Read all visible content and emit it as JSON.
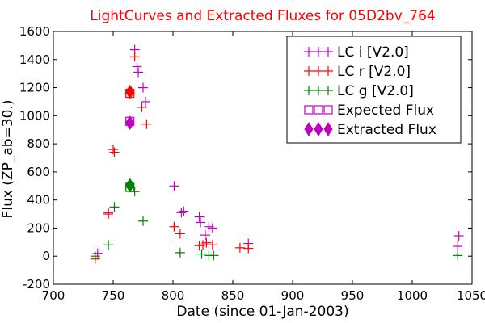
{
  "chart_data": {
    "type": "scatter",
    "title": "LightCurves and Extracted Fluxes for 05D2bv_764",
    "title_color": "#ff0000",
    "xlabel": "Date (since 01-Jan-2003)",
    "ylabel": "Flux (ZP_ab=30.)",
    "xlim": [
      700,
      1050
    ],
    "ylim": [
      -200,
      1600
    ],
    "x_ticks": [
      700,
      750,
      800,
      850,
      900,
      950,
      1000,
      1050
    ],
    "y_ticks": [
      -200,
      0,
      200,
      400,
      600,
      800,
      1000,
      1200,
      1400,
      1600
    ],
    "grid": false,
    "legend_position": "top-right",
    "series": [
      {
        "name": "LC i [V2.0]",
        "marker": "plus",
        "color": "#bf00bf",
        "points": [
          [
            737,
            20
          ],
          [
            746,
            310
          ],
          [
            768,
            1470
          ],
          [
            770,
            1350
          ],
          [
            771,
            1310
          ],
          [
            775,
            1200
          ],
          [
            777,
            1100
          ],
          [
            801,
            500
          ],
          [
            807,
            310
          ],
          [
            809,
            320
          ],
          [
            822,
            280
          ],
          [
            823,
            240
          ],
          [
            827,
            150
          ],
          [
            830,
            210
          ],
          [
            833,
            200
          ],
          [
            863,
            90
          ],
          [
            1038,
            70
          ],
          [
            1039,
            145
          ]
        ]
      },
      {
        "name": "LC r [V2.0]",
        "marker": "plus",
        "color": "#ff0000",
        "points": [
          [
            735,
            -20
          ],
          [
            746,
            300
          ],
          [
            750,
            760
          ],
          [
            751,
            740
          ],
          [
            764,
            1160
          ],
          [
            768,
            1420
          ],
          [
            774,
            1060
          ],
          [
            778,
            940
          ],
          [
            801,
            210
          ],
          [
            806,
            160
          ],
          [
            822,
            75
          ],
          [
            825,
            80
          ],
          [
            828,
            95
          ],
          [
            833,
            80
          ],
          [
            856,
            60
          ],
          [
            863,
            55
          ]
        ]
      },
      {
        "name": "LC g [V2.0]",
        "marker": "plus",
        "color": "#008000",
        "points": [
          [
            735,
            0
          ],
          [
            746,
            80
          ],
          [
            751,
            350
          ],
          [
            764,
            490
          ],
          [
            768,
            460
          ],
          [
            775,
            250
          ],
          [
            806,
            25
          ],
          [
            824,
            15
          ],
          [
            830,
            5
          ],
          [
            834,
            5
          ],
          [
            1038,
            5
          ]
        ]
      },
      {
        "name": "Expected Flux",
        "marker": "square",
        "color": "#bf00bf",
        "points": [
          [
            764,
            1160
          ],
          [
            764,
            960
          ],
          [
            764,
            490
          ]
        ],
        "point_colors": [
          "#ff0000",
          "#bf00bf",
          "#008000"
        ]
      },
      {
        "name": "Extracted Flux",
        "marker": "diamond",
        "color": "#bf00bf",
        "points": [
          [
            764,
            1170
          ],
          [
            764,
            950
          ],
          [
            764,
            505
          ]
        ],
        "point_colors": [
          "#ff0000",
          "#bf00bf",
          "#008000"
        ]
      }
    ]
  }
}
